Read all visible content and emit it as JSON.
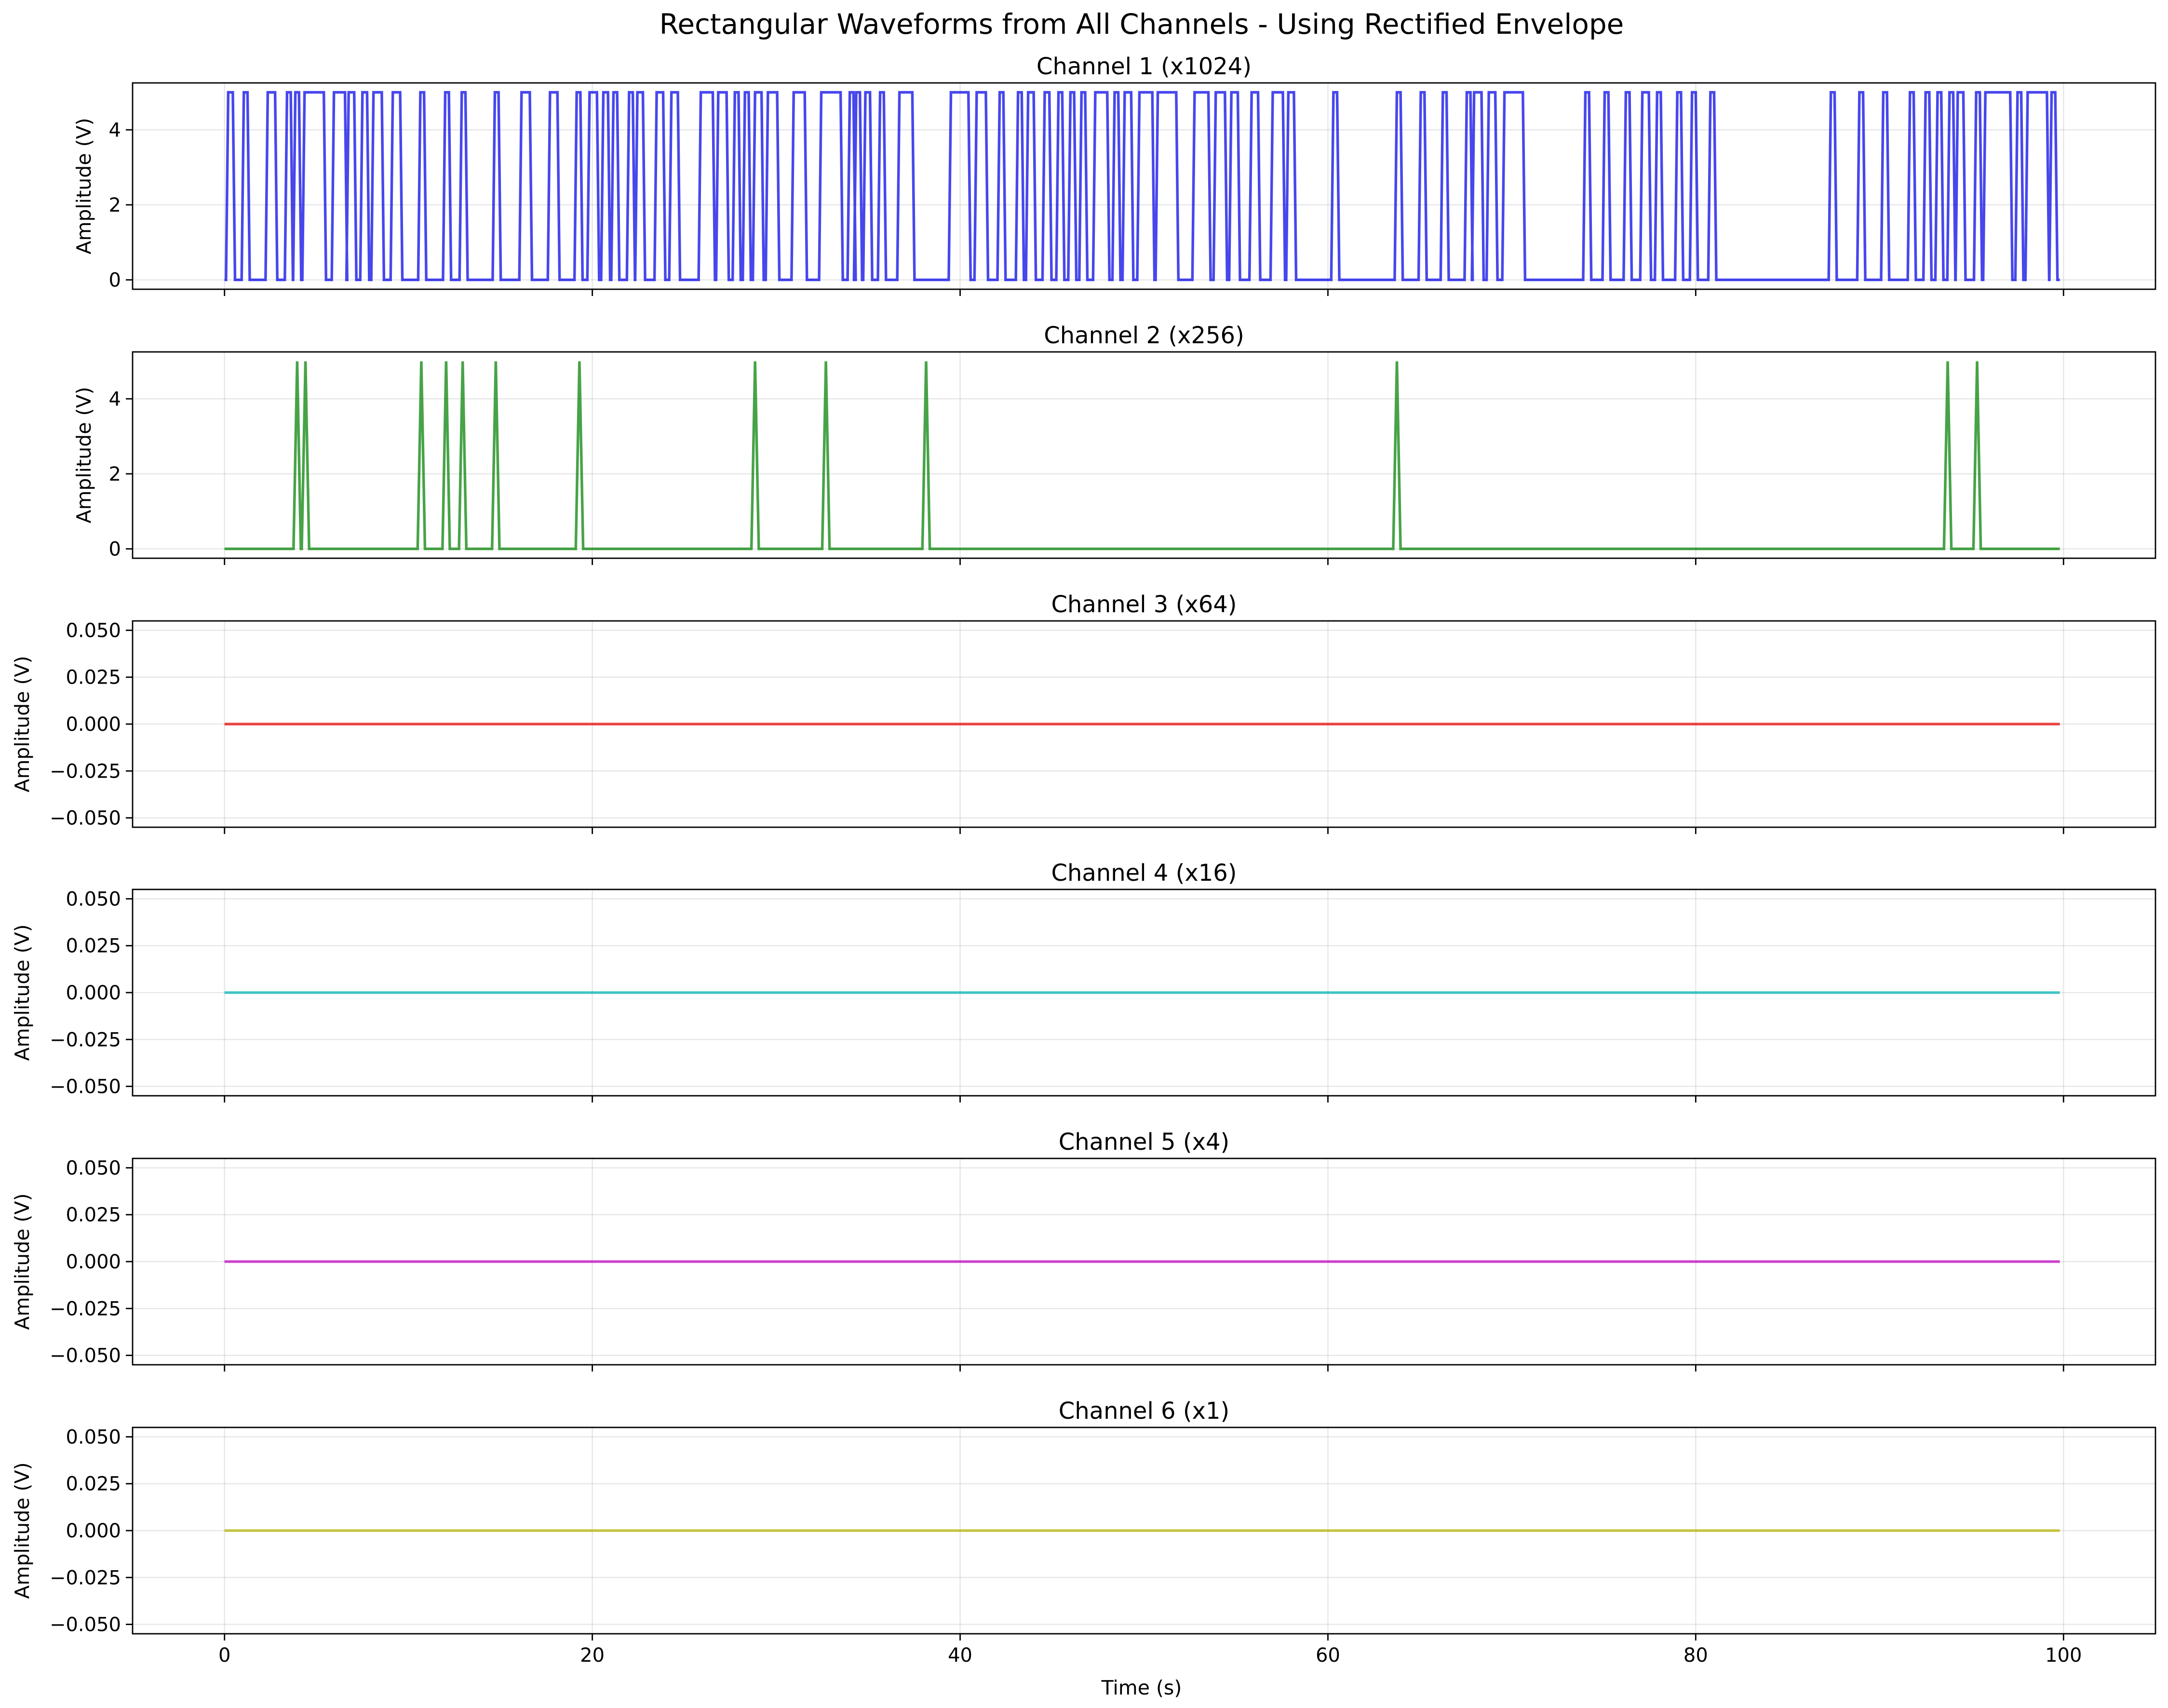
{
  "figure": {
    "title": "Rectangular Waveforms from All Channels - Using Rectified Envelope",
    "xlabel": "Time (s)"
  },
  "chart_data": [
    {
      "type": "line",
      "title": "Channel 1 (x1024)",
      "ylabel": "Amplitude (V)",
      "color": "#0000e6",
      "xlim": [
        -5,
        105
      ],
      "ylim": [
        -0.25,
        5.25
      ],
      "xticks": [
        0,
        20,
        40,
        60,
        80,
        100
      ],
      "xtick_labels_visible": false,
      "yticks": [
        0,
        2,
        4
      ],
      "ytick_labels": [
        "0",
        "2",
        "4"
      ],
      "grid": true,
      "x_end": 99.8,
      "pulses": [
        [
          0.2,
          0.45
        ],
        [
          1.05,
          1.25
        ],
        [
          2.35,
          2.75
        ],
        [
          3.4,
          3.6
        ],
        [
          3.85,
          4.05
        ],
        [
          4.35,
          5.4
        ],
        [
          5.95,
          6.55
        ],
        [
          6.75,
          7.05
        ],
        [
          7.5,
          7.75
        ],
        [
          8.1,
          8.55
        ],
        [
          9.15,
          9.55
        ],
        [
          10.65,
          10.85
        ],
        [
          12.0,
          12.2
        ],
        [
          12.9,
          13.1
        ],
        [
          14.7,
          14.9
        ],
        [
          16.15,
          16.6
        ],
        [
          17.7,
          18.1
        ],
        [
          19.15,
          19.35
        ],
        [
          19.85,
          20.25
        ],
        [
          20.6,
          20.85
        ],
        [
          21.15,
          21.35
        ],
        [
          22.0,
          22.2
        ],
        [
          22.45,
          22.75
        ],
        [
          23.5,
          23.85
        ],
        [
          24.3,
          24.65
        ],
        [
          25.9,
          26.55
        ],
        [
          26.85,
          27.3
        ],
        [
          27.75,
          27.95
        ],
        [
          28.3,
          28.5
        ],
        [
          28.85,
          29.2
        ],
        [
          29.55,
          30.05
        ],
        [
          30.95,
          31.55
        ],
        [
          32.45,
          33.5
        ],
        [
          34.0,
          34.2
        ],
        [
          34.35,
          34.55
        ],
        [
          34.85,
          35.1
        ],
        [
          35.65,
          35.85
        ],
        [
          36.7,
          37.4
        ],
        [
          39.5,
          40.45
        ],
        [
          40.9,
          41.4
        ],
        [
          42.15,
          42.35
        ],
        [
          43.15,
          43.35
        ],
        [
          43.7,
          44.0
        ],
        [
          44.6,
          44.85
        ],
        [
          45.35,
          45.55
        ],
        [
          46.0,
          46.2
        ],
        [
          46.6,
          46.8
        ],
        [
          47.35,
          48.0
        ],
        [
          48.4,
          48.6
        ],
        [
          48.95,
          49.3
        ],
        [
          49.75,
          50.45
        ],
        [
          50.75,
          51.75
        ],
        [
          52.75,
          53.5
        ],
        [
          53.9,
          54.4
        ],
        [
          54.75,
          55.1
        ],
        [
          55.85,
          56.2
        ],
        [
          57.0,
          57.55
        ],
        [
          57.85,
          58.15
        ],
        [
          60.3,
          60.5
        ],
        [
          63.75,
          63.95
        ],
        [
          65.05,
          65.25
        ],
        [
          66.25,
          66.45
        ],
        [
          67.55,
          67.75
        ],
        [
          67.95,
          68.35
        ],
        [
          68.75,
          69.1
        ],
        [
          69.6,
          70.6
        ],
        [
          74.0,
          74.2
        ],
        [
          75.05,
          75.25
        ],
        [
          76.2,
          76.4
        ],
        [
          77.1,
          77.45
        ],
        [
          77.9,
          78.1
        ],
        [
          79.0,
          79.2
        ],
        [
          79.8,
          80.0
        ],
        [
          80.8,
          81.0
        ],
        [
          87.35,
          87.55
        ],
        [
          88.9,
          89.1
        ],
        [
          90.2,
          90.4
        ],
        [
          91.65,
          91.85
        ],
        [
          92.5,
          92.7
        ],
        [
          93.15,
          93.35
        ],
        [
          93.8,
          94.0
        ],
        [
          94.25,
          94.55
        ],
        [
          95.25,
          95.45
        ],
        [
          95.75,
          97.1
        ],
        [
          97.5,
          97.7
        ],
        [
          98.05,
          99.1
        ],
        [
          99.35,
          99.55
        ]
      ]
    },
    {
      "type": "line",
      "title": "Channel 2 (x256)",
      "ylabel": "Amplitude (V)",
      "color": "#008000",
      "xlim": [
        -5,
        105
      ],
      "ylim": [
        -0.25,
        5.25
      ],
      "xticks": [
        0,
        20,
        40,
        60,
        80,
        100
      ],
      "xtick_labels_visible": false,
      "yticks": [
        0,
        2,
        4
      ],
      "ytick_labels": [
        "0",
        "2",
        "4"
      ],
      "grid": true,
      "x_end": 99.8,
      "spikes": [
        3.95,
        4.4,
        10.7,
        12.05,
        12.95,
        14.75,
        19.3,
        28.85,
        32.7,
        38.15,
        63.75,
        93.7,
        95.3
      ]
    },
    {
      "type": "line",
      "title": "Channel 3 (x64)",
      "ylabel": "Amplitude (V)",
      "color": "#e60000",
      "xlim": [
        -5,
        105
      ],
      "ylim": [
        -0.055,
        0.055
      ],
      "xticks": [
        0,
        20,
        40,
        60,
        80,
        100
      ],
      "xtick_labels_visible": false,
      "yticks": [
        -0.05,
        -0.025,
        0,
        0.025,
        0.05
      ],
      "ytick_labels": [
        "−0.050",
        "−0.025",
        "0.000",
        "0.025",
        "0.050"
      ],
      "grid": true,
      "x_end": 99.8,
      "constant": 0
    },
    {
      "type": "line",
      "title": "Channel 4 (x16)",
      "ylabel": "Amplitude (V)",
      "color": "#00b4b4",
      "xlim": [
        -5,
        105
      ],
      "ylim": [
        -0.055,
        0.055
      ],
      "xticks": [
        0,
        20,
        40,
        60,
        80,
        100
      ],
      "xtick_labels_visible": false,
      "yticks": [
        -0.05,
        -0.025,
        0,
        0.025,
        0.05
      ],
      "ytick_labels": [
        "−0.050",
        "−0.025",
        "0.000",
        "0.025",
        "0.050"
      ],
      "grid": true,
      "x_end": 99.8,
      "constant": 0
    },
    {
      "type": "line",
      "title": "Channel 5 (x4)",
      "ylabel": "Amplitude (V)",
      "color": "#c000c0",
      "xlim": [
        -5,
        105
      ],
      "ylim": [
        -0.055,
        0.055
      ],
      "xticks": [
        0,
        20,
        40,
        60,
        80,
        100
      ],
      "xtick_labels_visible": false,
      "yticks": [
        -0.05,
        -0.025,
        0,
        0.025,
        0.05
      ],
      "ytick_labels": [
        "−0.050",
        "−0.025",
        "0.000",
        "0.025",
        "0.050"
      ],
      "grid": true,
      "x_end": 99.8,
      "constant": 0
    },
    {
      "type": "line",
      "title": "Channel 6 (x1)",
      "ylabel": "Amplitude (V)",
      "color": "#b4b400",
      "xlim": [
        -5,
        105
      ],
      "ylim": [
        -0.055,
        0.055
      ],
      "xticks": [
        0,
        20,
        40,
        60,
        80,
        100
      ],
      "xtick_labels": [
        "0",
        "20",
        "40",
        "60",
        "80",
        "100"
      ],
      "xtick_labels_visible": true,
      "yticks": [
        -0.05,
        -0.025,
        0,
        0.025,
        0.05
      ],
      "ytick_labels": [
        "−0.050",
        "−0.025",
        "0.000",
        "0.025",
        "0.050"
      ],
      "grid": true,
      "x_end": 99.8,
      "constant": 0
    }
  ]
}
